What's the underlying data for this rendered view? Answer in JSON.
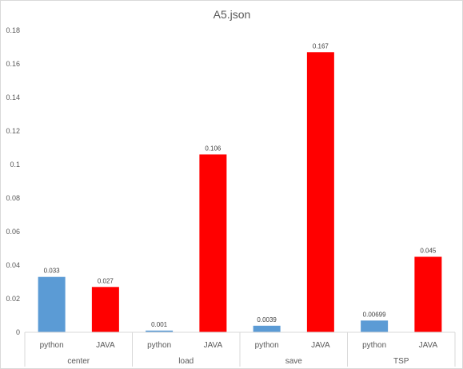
{
  "chart_data": {
    "type": "bar",
    "title": "A5.json",
    "groups": [
      "center",
      "load",
      "save",
      "TSP"
    ],
    "categories": [
      "python",
      "JAVA",
      "python",
      "JAVA",
      "python",
      "JAVA",
      "python",
      "JAVA"
    ],
    "values": [
      0.033,
      0.027,
      0.001,
      0.106,
      0.0039,
      0.167,
      0.00699,
      0.045
    ],
    "data_labels": [
      "0.033",
      "0.027",
      "0.001",
      "0.106",
      "0.0039",
      "0.167",
      "0.00699",
      "0.045"
    ],
    "bar_colors": [
      "#5b9bd5",
      "#ff0000",
      "#5b9bd5",
      "#ff0000",
      "#5b9bd5",
      "#ff0000",
      "#5b9bd5",
      "#ff0000"
    ],
    "y_ticks": [
      "0",
      "0.02",
      "0.04",
      "0.06",
      "0.08",
      "0.1",
      "0.12",
      "0.14",
      "0.16",
      "0.18"
    ],
    "ylim": [
      0,
      0.18
    ],
    "grid": false,
    "legend": "none",
    "xlabel": "",
    "ylabel": ""
  }
}
